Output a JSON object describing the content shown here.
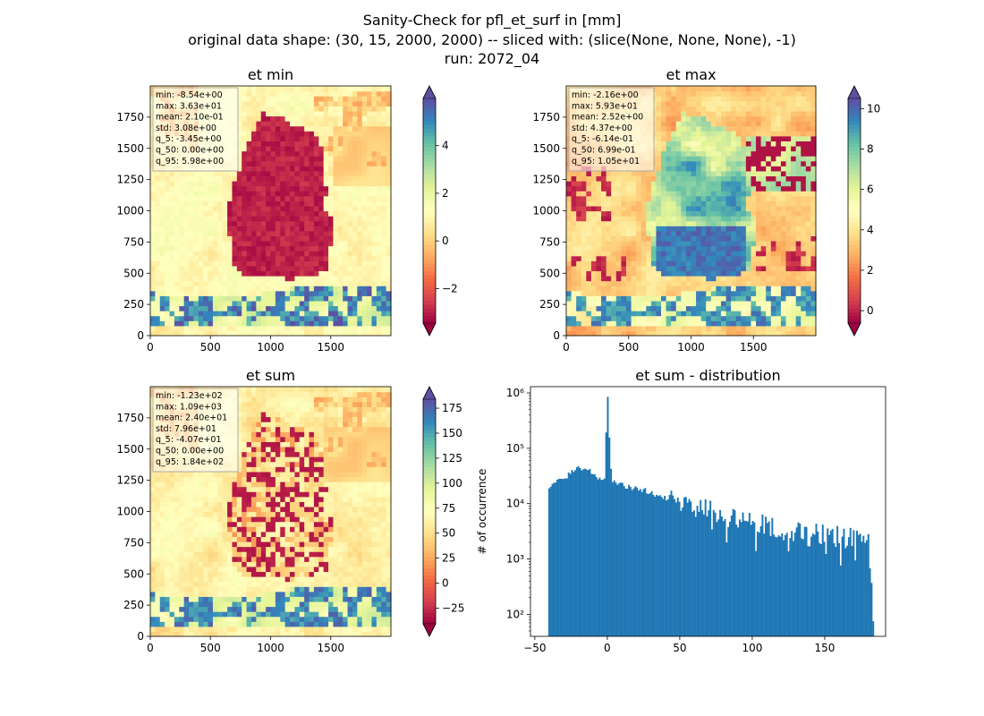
{
  "figure": {
    "title_line1": "Sanity-Check for pfl_et_surf in [mm]",
    "title_line2": "original data shape: (30, 15, 2000, 2000) -- sliced with: (slice(None, None, None), -1)",
    "title_line3": "run: 2072_04"
  },
  "chart_data": [
    {
      "type": "heatmap",
      "title": "et min",
      "xlim": [
        0,
        2000
      ],
      "ylim": [
        0,
        2000
      ],
      "xticks": [
        0,
        500,
        1000,
        1500
      ],
      "yticks": [
        0,
        250,
        500,
        750,
        1000,
        1250,
        1500,
        1750
      ],
      "colormap": "Spectral",
      "colorbar": {
        "range": [
          -3.45,
          5.98
        ],
        "ticks": [
          -2,
          0,
          2,
          4
        ],
        "extend": "both"
      },
      "stats": [
        "min: -8.54e+00",
        "max: 3.63e+01",
        "mean: 2.10e-01",
        "std: 3.08e+00",
        "q_5: -3.45e+00",
        "q_50: 0.00e+00",
        "q_95: 5.98e+00"
      ]
    },
    {
      "type": "heatmap",
      "title": "et max",
      "xlim": [
        0,
        2000
      ],
      "ylim": [
        0,
        2000
      ],
      "xticks": [
        0,
        500,
        1000,
        1500
      ],
      "yticks": [
        0,
        250,
        500,
        750,
        1000,
        1250,
        1500,
        1750
      ],
      "colormap": "Spectral",
      "colorbar": {
        "range": [
          -0.614,
          10.5
        ],
        "ticks": [
          0,
          2,
          4,
          6,
          8,
          10
        ],
        "extend": "both"
      },
      "stats": [
        "min: -2.16e+00",
        "max: 5.93e+01",
        "mean: 2.52e+00",
        "std: 4.37e+00",
        "q_5: -6.14e-01",
        "q_50: 6.99e-01",
        "q_95: 1.05e+01"
      ]
    },
    {
      "type": "heatmap",
      "title": "et sum",
      "xlim": [
        0,
        2000
      ],
      "ylim": [
        0,
        2000
      ],
      "xticks": [
        0,
        500,
        1000,
        1500
      ],
      "yticks": [
        0,
        250,
        500,
        750,
        1000,
        1250,
        1500,
        1750
      ],
      "colormap": "Spectral",
      "colorbar": {
        "range": [
          -40.7,
          184
        ],
        "ticks": [
          -25,
          0,
          25,
          50,
          75,
          100,
          125,
          150,
          175
        ],
        "extend": "both"
      },
      "stats": [
        "min: -1.23e+02",
        "max: 1.09e+03",
        "mean: 2.40e+01",
        "std: 7.96e+01",
        "q_5: -4.07e+01",
        "q_50: 0.00e+00",
        "q_95: 1.84e+02"
      ]
    },
    {
      "type": "bar",
      "title": "et sum - distribution",
      "ylabel": "# of occurrence",
      "yscale": "log",
      "xlim": [
        -53,
        192
      ],
      "ylim": [
        40,
        1300000
      ],
      "xticks": [
        -50,
        0,
        50,
        100,
        150
      ],
      "yticks": [
        100,
        1000,
        10000,
        100000,
        1000000
      ],
      "ytick_labels": [
        "10²",
        "10³",
        "10⁴",
        "10⁵",
        "10⁶"
      ],
      "color": "#1f77b4",
      "range": [
        -40.7,
        184
      ],
      "bins": 200,
      "anchors": [
        [
          -40.7,
          20000
        ],
        [
          -38,
          22500
        ],
        [
          -30,
          27000
        ],
        [
          -25,
          36000
        ],
        [
          -20,
          48000
        ],
        [
          -15,
          42000
        ],
        [
          -8,
          32000
        ],
        [
          -2,
          26000
        ],
        [
          0,
          850000
        ],
        [
          3,
          25000
        ],
        [
          10,
          21000
        ],
        [
          20,
          19000
        ],
        [
          30,
          16000
        ],
        [
          40,
          13000
        ],
        [
          50,
          10000
        ],
        [
          60,
          8500
        ],
        [
          70,
          7500
        ],
        [
          80,
          6000
        ],
        [
          90,
          5000
        ],
        [
          100,
          4500
        ],
        [
          110,
          4000
        ],
        [
          120,
          3500
        ],
        [
          130,
          3000
        ],
        [
          140,
          3000
        ],
        [
          150,
          2800
        ],
        [
          160,
          2500
        ],
        [
          170,
          2300
        ],
        [
          180,
          2000
        ],
        [
          184,
          75
        ]
      ]
    }
  ]
}
